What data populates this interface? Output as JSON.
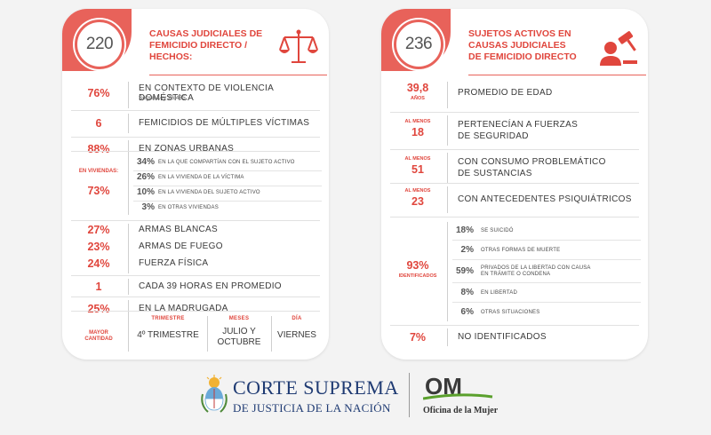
{
  "left_card": {
    "badge": "220",
    "title": "CAUSAS JUDICIALES DE\nFEMICIDIO DIRECTO /\nHECHOS:",
    "icon": "scales-of-justice-icon",
    "rows": [
      {
        "value": "76%",
        "text": "EN CONTEXTO DE VIOLENCIA DOMÉSTICA",
        "sub": "Según Ley 26.485"
      },
      {
        "value": "6",
        "text": "FEMICIDIOS DE MÚLTIPLES VÍCTIMAS"
      },
      {
        "value": "88%",
        "text": "EN ZONAS URBANAS"
      }
    ],
    "viviendas": {
      "label": "EN VIVIENDAS:",
      "value": "73%",
      "items": [
        {
          "value": "34%",
          "text": "EN LA QUE COMPARTÍAN CON EL SUJETO ACTIVO"
        },
        {
          "value": "26%",
          "text": "EN LA VIVIENDA DE LA VÍCTIMA"
        },
        {
          "value": "10%",
          "text": "EN LA VIVIENDA DEL SUJETO ACTIVO"
        },
        {
          "value": "3%",
          "text": "EN OTRAS VIVIENDAS"
        }
      ]
    },
    "arms": [
      {
        "value": "27%",
        "text": "ARMAS BLANCAS"
      },
      {
        "value": "23%",
        "text": "ARMAS DE FUEGO"
      },
      {
        "value": "24%",
        "text": "FUERZA FÍSICA"
      }
    ],
    "freq": {
      "value": "1",
      "text": "CADA 39 HORAS EN PROMEDIO"
    },
    "night": {
      "value": "25%",
      "text": "EN LA MADRUGADA"
    },
    "footer": {
      "label": "MAYOR\nCANTIDAD",
      "cols": [
        {
          "head": "TRIMESTRE",
          "value": "4º TRIMESTRE"
        },
        {
          "head": "MESES",
          "value": "JULIO Y\nOCTUBRE"
        },
        {
          "head": "DÍA",
          "value": "VIERNES"
        }
      ]
    }
  },
  "right_card": {
    "badge": "236",
    "title": "SUJETOS ACTIVOS EN\nCAUSAS JUDICIALES\nDE FEMICIDIO DIRECTO",
    "icon": "judge-person-icon",
    "rows": [
      {
        "value": "39,8",
        "small": "AÑOS",
        "text": "PROMEDIO DE EDAD"
      },
      {
        "small": "AL MENOS",
        "value": "18",
        "text": "PERTENECÍAN A FUERZAS\nDE SEGURIDAD"
      },
      {
        "small": "AL MENOS",
        "value": "51",
        "text": "CON CONSUMO PROBLEMÁTICO\nDE SUSTANCIAS"
      },
      {
        "small": "AL MENOS",
        "value": "23",
        "text": "CON ANTECEDENTES PSIQUIÁTRICOS"
      }
    ],
    "identified": {
      "value": "93%",
      "label": "IDENTIFICADOS",
      "items": [
        {
          "value": "18%",
          "text": "SE SUICIDÓ"
        },
        {
          "value": "2%",
          "text": "OTRAS FORMAS DE MUERTE"
        },
        {
          "value": "59%",
          "text": "PRIVADOS DE LA LIBERTAD CON CAUSA\nEN TRÁMITE O CONDENA"
        },
        {
          "value": "8%",
          "text": "EN LIBERTAD"
        },
        {
          "value": "6%",
          "text": "OTRAS SITUACIONES"
        }
      ]
    },
    "not_identified": {
      "value": "7%",
      "text": "NO IDENTIFICADOS"
    }
  },
  "logos": {
    "cs_line1": "CORTE SUPREMA",
    "cs_line2": "DE JUSTICIA DE LA NACIÓN",
    "om_mark": "OM",
    "om_text": "Oficina de la Mujer"
  },
  "colors": {
    "accent": "#e0463d",
    "ribbon": "#e8625a",
    "navy": "#1f3b73",
    "om_green": "#5aa02c"
  }
}
